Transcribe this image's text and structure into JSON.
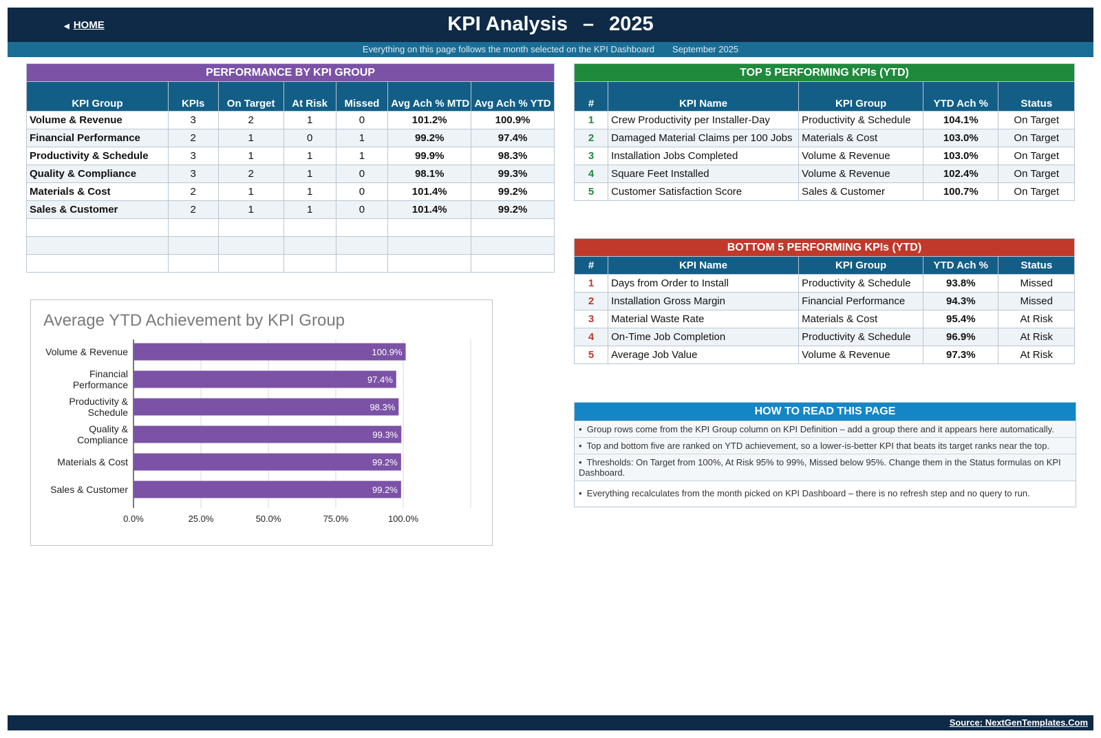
{
  "header": {
    "home_label": "HOME",
    "title": "KPI Analysis",
    "separator": "–",
    "year": "2025",
    "subtitle": "Everything on this page follows the month selected on the KPI Dashboard",
    "month": "September 2025"
  },
  "colors": {
    "navy": "#0e2a47",
    "purple": "#7b52a6",
    "green": "#1f8a3c",
    "red": "#c0392b",
    "blue_header": "#135e86",
    "howto_blue": "#1486c6"
  },
  "performance": {
    "title": "PERFORMANCE BY KPI GROUP",
    "columns": [
      "KPI Group",
      "KPIs",
      "On Target",
      "At Risk",
      "Missed",
      "Avg Ach % MTD",
      "Avg Ach % YTD"
    ],
    "rows": [
      [
        "Volume & Revenue",
        "3",
        "2",
        "1",
        "0",
        "101.2%",
        "100.9%"
      ],
      [
        "Financial Performance",
        "2",
        "1",
        "0",
        "1",
        "99.2%",
        "97.4%"
      ],
      [
        "Productivity & Schedule",
        "3",
        "1",
        "1",
        "1",
        "99.9%",
        "98.3%"
      ],
      [
        "Quality & Compliance",
        "3",
        "2",
        "1",
        "0",
        "98.1%",
        "99.3%"
      ],
      [
        "Materials & Cost",
        "2",
        "1",
        "1",
        "0",
        "101.4%",
        "99.2%"
      ],
      [
        "Sales & Customer",
        "2",
        "1",
        "1",
        "0",
        "101.4%",
        "99.2%"
      ]
    ]
  },
  "top5": {
    "title": "TOP 5 PERFORMING KPIs  (YTD)",
    "columns": [
      "#",
      "KPI Name",
      "KPI Group",
      "YTD Ach %",
      "Status"
    ],
    "rows": [
      [
        "1",
        "Crew Productivity per Installer-Day",
        "Productivity & Schedule",
        "104.1%",
        "On Target"
      ],
      [
        "2",
        "Damaged Material Claims per 100 Jobs",
        "Materials & Cost",
        "103.0%",
        "On Target"
      ],
      [
        "3",
        "Installation Jobs Completed",
        "Volume & Revenue",
        "103.0%",
        "On Target"
      ],
      [
        "4",
        "Square Feet Installed",
        "Volume & Revenue",
        "102.4%",
        "On Target"
      ],
      [
        "5",
        "Customer Satisfaction Score",
        "Sales & Customer",
        "100.7%",
        "On Target"
      ]
    ]
  },
  "bottom5": {
    "title": "BOTTOM 5 PERFORMING KPIs  (YTD)",
    "columns": [
      "#",
      "KPI Name",
      "KPI Group",
      "YTD Ach %",
      "Status"
    ],
    "rows": [
      [
        "1",
        "Days from Order to Install",
        "Productivity & Schedule",
        "93.8%",
        "Missed"
      ],
      [
        "2",
        "Installation Gross Margin",
        "Financial Performance",
        "94.3%",
        "Missed"
      ],
      [
        "3",
        "Material Waste Rate",
        "Materials & Cost",
        "95.4%",
        "At Risk"
      ],
      [
        "4",
        "On-Time Job Completion",
        "Productivity & Schedule",
        "96.9%",
        "At Risk"
      ],
      [
        "5",
        "Average Job Value",
        "Volume & Revenue",
        "97.3%",
        "At Risk"
      ]
    ]
  },
  "howto": {
    "title": "HOW TO READ THIS PAGE",
    "items": [
      "Group rows come from the KPI Group column on KPI Definition – add a group there and it appears here automatically.",
      "Top and bottom five are ranked on YTD achievement, so a lower-is-better KPI that beats its target ranks near the top.",
      "Thresholds: On Target from 100%, At Risk 95% to 99%, Missed below 95%. Change them in the Status formulas on KPI Dashboard.",
      "Everything recalculates from the month picked on KPI Dashboard – there is no refresh step and no query to run."
    ]
  },
  "chart_data": {
    "type": "bar",
    "orientation": "horizontal",
    "title": "Average YTD Achievement by KPI Group",
    "categories": [
      "Volume & Revenue",
      "Financial Performance",
      "Productivity & Schedule",
      "Quality & Compliance",
      "Materials & Cost",
      "Sales & Customer"
    ],
    "values": [
      100.9,
      97.4,
      98.3,
      99.3,
      99.2,
      99.2
    ],
    "value_labels": [
      "100.9%",
      "97.4%",
      "98.3%",
      "99.3%",
      "99.2%",
      "99.2%"
    ],
    "xlim": [
      0,
      125
    ],
    "xticks": [
      "0.0%",
      "25.0%",
      "50.0%",
      "75.0%",
      "100.0%"
    ],
    "bar_color": "#7b52a6",
    "grid": true
  },
  "footer": {
    "source": "Source: NextGenTemplates.Com"
  }
}
